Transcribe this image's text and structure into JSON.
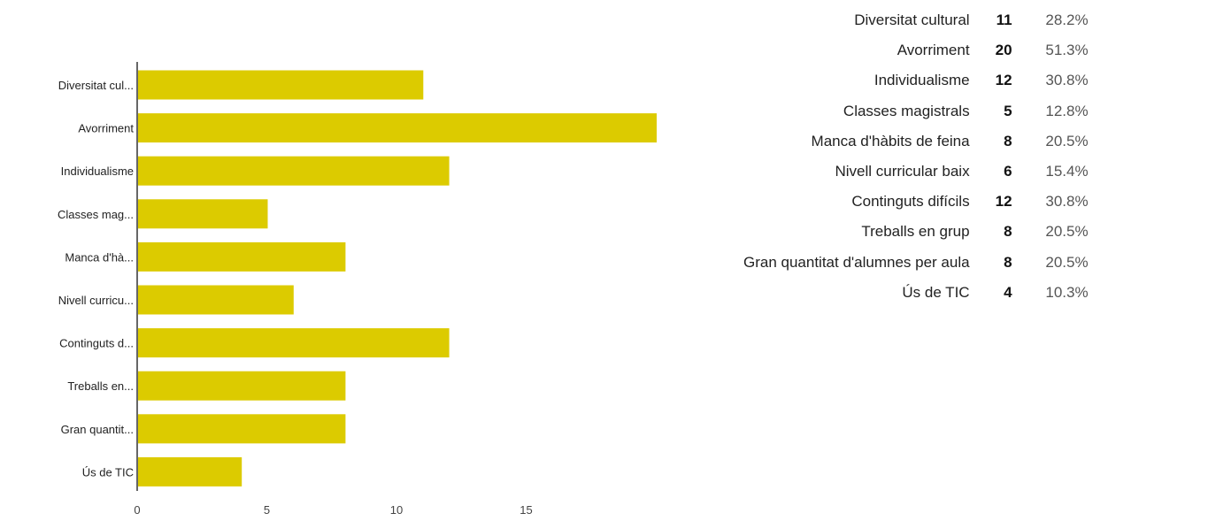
{
  "chart_data": {
    "type": "bar",
    "orientation": "horizontal",
    "categories": [
      "Diversitat cul...",
      "Avorriment",
      "Individualisme",
      "Classes mag...",
      "Manca d'hà...",
      "Nivell curricu...",
      "Continguts d...",
      "Treballs en...",
      "Gran quantit...",
      "Ús de TIC"
    ],
    "values": [
      11,
      20,
      12,
      5,
      8,
      6,
      12,
      8,
      8,
      4
    ],
    "xlim": [
      0,
      20
    ],
    "xticks": [
      "0",
      "5",
      "10",
      "15"
    ],
    "grid": false,
    "legend": "none",
    "bar_color": "#dccb00",
    "axis_color": "#333333"
  },
  "summary": {
    "rows": [
      {
        "label": "Diversitat cultural",
        "count": "11",
        "percent": "28.2%"
      },
      {
        "label": "Avorriment",
        "count": "20",
        "percent": "51.3%"
      },
      {
        "label": "Individualisme",
        "count": "12",
        "percent": "30.8%"
      },
      {
        "label": "Classes magistrals",
        "count": "5",
        "percent": "12.8%"
      },
      {
        "label": "Manca d'hàbits de feina",
        "count": "8",
        "percent": "20.5%"
      },
      {
        "label": "Nivell curricular baix",
        "count": "6",
        "percent": "15.4%"
      },
      {
        "label": "Continguts difícils",
        "count": "12",
        "percent": "30.8%"
      },
      {
        "label": "Treballs en grup",
        "count": "8",
        "percent": "20.5%"
      },
      {
        "label": "Gran quantitat d'alumnes per aula",
        "count": "8",
        "percent": "20.5%"
      },
      {
        "label": "Ús de TIC",
        "count": "4",
        "percent": "10.3%"
      }
    ]
  }
}
